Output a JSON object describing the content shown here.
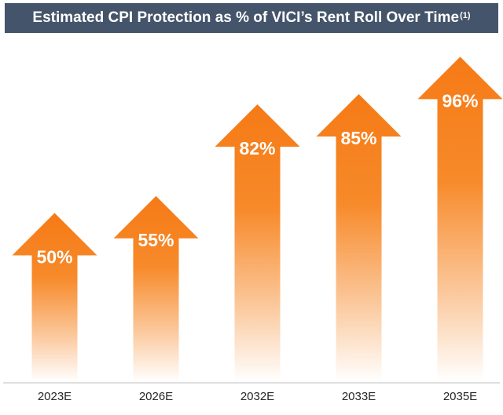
{
  "chart_data": {
    "type": "bar",
    "title": "Estimated CPI Protection as % of VICI’s Rent Roll Over Time",
    "title_footnote": "(1)",
    "categories": [
      "2023E",
      "2026E",
      "2032E",
      "2033E",
      "2035E"
    ],
    "values": [
      50,
      55,
      82,
      85,
      96
    ],
    "value_labels": [
      "50%",
      "55%",
      "82%",
      "85%",
      "96%"
    ],
    "ylim": [
      0,
      100
    ],
    "grid": false,
    "legend": "none",
    "style": "arrow",
    "colors": {
      "arrow_top": "#f57a16",
      "arrow_fade": "#ffffff",
      "title_bg": "#44546a",
      "title_text": "#ffffff",
      "axis": "#bfbfbf"
    }
  }
}
